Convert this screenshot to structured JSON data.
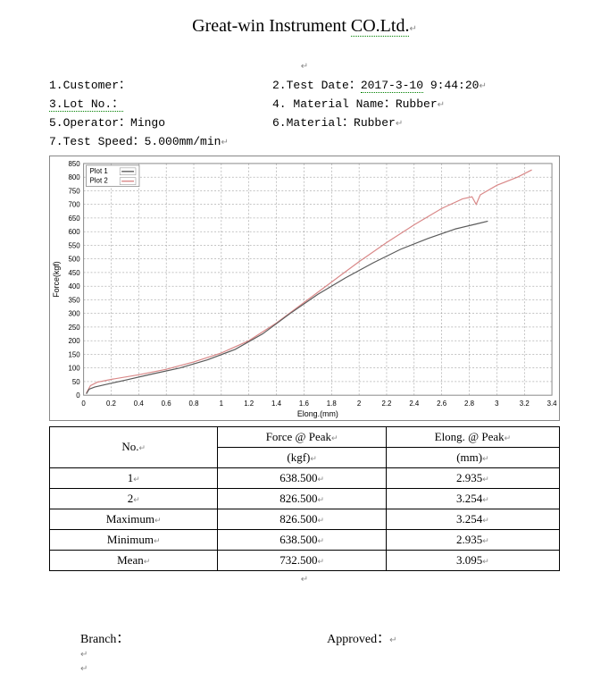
{
  "title_pre": "Great-win Instrument ",
  "title_under": "CO.Ltd.",
  "meta": {
    "row1_left_num": "1.",
    "row1_left_label": "Customer：",
    "row1_right_num": "2.",
    "row1_right_label": "Test Date：",
    "row1_right_value": "2017-3-10",
    "row1_right_value2": " 9:44:20",
    "row2_left_num": "3.",
    "row2_left_label": "Lot No.：",
    "row2_right": " 4. Material Name：Rubber",
    "row3_left": "5.Operator：Mingo",
    "row3_right": "6.Material：Rubber",
    "row4_left": "7.Test Speed：5.000mm/min"
  },
  "chart": {
    "title_plot1": "Plot 1",
    "title_plot2": "Plot 2",
    "xlabel": "Elong.(mm)",
    "ylabel": "Force(kgf)",
    "xlim": [
      0,
      3.4
    ],
    "ylim": [
      0,
      850
    ],
    "xticks": [
      0,
      0.2,
      0.4,
      0.6,
      0.8,
      1,
      1.2,
      1.4,
      1.6,
      1.8,
      2,
      2.2,
      2.4,
      2.6,
      2.8,
      3,
      3.2,
      3.4
    ],
    "yticks": [
      0,
      50,
      100,
      150,
      200,
      250,
      300,
      350,
      400,
      450,
      500,
      550,
      600,
      650,
      700,
      750,
      800,
      850
    ],
    "grid_color": "#888888",
    "background": "#ffffff",
    "plot1_color": "#5a5a5a",
    "plot2_color": "#d98888",
    "line_width": 1.2,
    "font_size_ticks": 8,
    "font_size_label": 9,
    "plot1_data": [
      [
        0.02,
        5
      ],
      [
        0.04,
        22
      ],
      [
        0.08,
        30
      ],
      [
        0.15,
        38
      ],
      [
        0.3,
        55
      ],
      [
        0.5,
        78
      ],
      [
        0.7,
        100
      ],
      [
        0.9,
        130
      ],
      [
        1.1,
        168
      ],
      [
        1.3,
        225
      ],
      [
        1.5,
        300
      ],
      [
        1.7,
        370
      ],
      [
        1.9,
        430
      ],
      [
        2.1,
        485
      ],
      [
        2.3,
        535
      ],
      [
        2.5,
        575
      ],
      [
        2.7,
        610
      ],
      [
        2.85,
        628
      ],
      [
        2.935,
        638.5
      ]
    ],
    "plot2_data": [
      [
        0.02,
        8
      ],
      [
        0.05,
        35
      ],
      [
        0.1,
        48
      ],
      [
        0.2,
        58
      ],
      [
        0.4,
        75
      ],
      [
        0.6,
        95
      ],
      [
        0.8,
        122
      ],
      [
        1.0,
        155
      ],
      [
        1.2,
        200
      ],
      [
        1.4,
        265
      ],
      [
        1.6,
        340
      ],
      [
        1.8,
        415
      ],
      [
        2.0,
        490
      ],
      [
        2.2,
        560
      ],
      [
        2.4,
        625
      ],
      [
        2.6,
        685
      ],
      [
        2.75,
        720
      ],
      [
        2.82,
        728
      ],
      [
        2.85,
        700
      ],
      [
        2.88,
        735
      ],
      [
        3.0,
        770
      ],
      [
        3.15,
        800
      ],
      [
        3.254,
        826.5
      ]
    ]
  },
  "table": {
    "col1": "No.",
    "col2a": "Force @ Peak",
    "col2b": "(kgf)",
    "col3a": "Elong. @ Peak",
    "col3b": "(mm)",
    "rows": [
      {
        "no": "1",
        "force": "638.500",
        "elong": "2.935"
      },
      {
        "no": "2",
        "force": "826.500",
        "elong": "3.254"
      },
      {
        "no": "Maximum",
        "force": "826.500",
        "elong": "3.254"
      },
      {
        "no": "Minimum",
        "force": "638.500",
        "elong": "2.935"
      },
      {
        "no": "Mean",
        "force": "732.500",
        "elong": "3.095"
      }
    ]
  },
  "footer": {
    "branch_label": "Branch：",
    "approved_label": "Approved："
  }
}
